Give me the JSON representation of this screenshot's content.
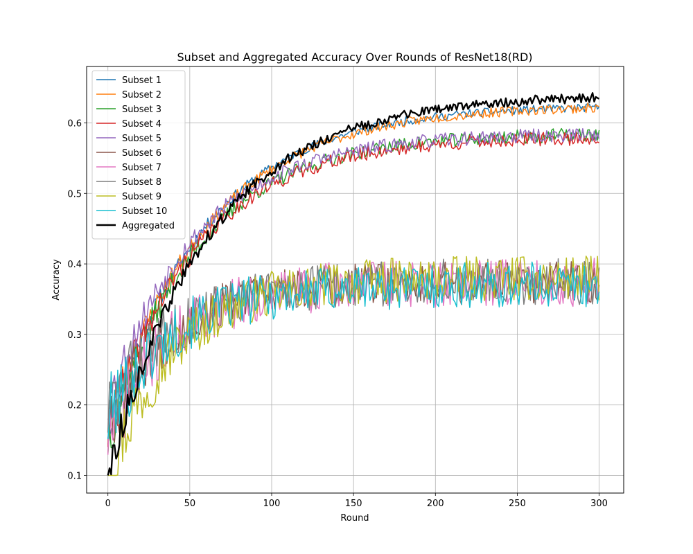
{
  "chart_data": {
    "type": "line",
    "title": "Subset and Aggregated Accuracy Over Rounds of ResNet18(RD)",
    "xlabel": "Round",
    "ylabel": "Accuracy",
    "xlim": [
      -13,
      315
    ],
    "ylim": [
      0.075,
      0.68
    ],
    "xticks": [
      0,
      50,
      100,
      150,
      200,
      250,
      300
    ],
    "yticks": [
      0.1,
      0.2,
      0.3,
      0.4,
      0.5,
      0.6
    ],
    "grid": true,
    "legend_position": "upper left",
    "x_range": [
      0,
      300
    ],
    "series": [
      {
        "name": "Subset 1",
        "color": "#1f77b4",
        "start": 0.16,
        "end": 0.625,
        "tau": 60,
        "noise": 0.006,
        "early_noise": 0.025,
        "seed": 11
      },
      {
        "name": "Subset 2",
        "color": "#ff7f0e",
        "start": 0.17,
        "end": 0.625,
        "tau": 62,
        "noise": 0.007,
        "early_noise": 0.03,
        "seed": 23
      },
      {
        "name": "Subset 3",
        "color": "#2ca02c",
        "start": 0.15,
        "end": 0.585,
        "tau": 55,
        "noise": 0.01,
        "early_noise": 0.03,
        "seed": 37
      },
      {
        "name": "Subset 4",
        "color": "#d62728",
        "start": 0.16,
        "end": 0.58,
        "tau": 55,
        "noise": 0.01,
        "early_noise": 0.03,
        "seed": 41
      },
      {
        "name": "Subset 5",
        "color": "#9467bd",
        "start": 0.2,
        "end": 0.585,
        "tau": 55,
        "noise": 0.01,
        "early_noise": 0.03,
        "seed": 53
      },
      {
        "name": "Subset 6",
        "color": "#8c564b",
        "start": 0.18,
        "end": 0.375,
        "tau": 40,
        "noise": 0.03,
        "early_noise": 0.03,
        "seed": 67
      },
      {
        "name": "Subset 7",
        "color": "#e377c2",
        "start": 0.16,
        "end": 0.375,
        "tau": 40,
        "noise": 0.035,
        "early_noise": 0.03,
        "seed": 71
      },
      {
        "name": "Subset 8",
        "color": "#7f7f7f",
        "start": 0.19,
        "end": 0.375,
        "tau": 40,
        "noise": 0.033,
        "early_noise": 0.03,
        "seed": 83
      },
      {
        "name": "Subset 9",
        "color": "#bcbd22",
        "start": 0.1,
        "end": 0.38,
        "tau": 40,
        "noise": 0.032,
        "early_noise": 0.03,
        "seed": 97
      },
      {
        "name": "Subset 10",
        "color": "#17becf",
        "start": 0.18,
        "end": 0.37,
        "tau": 40,
        "noise": 0.033,
        "early_noise": 0.03,
        "seed": 101
      },
      {
        "name": "Aggregated",
        "color": "#000000",
        "start": 0.1,
        "end": 0.64,
        "tau": 62,
        "noise": 0.007,
        "early_noise": 0.02,
        "seed": 113,
        "bold": true
      }
    ]
  }
}
